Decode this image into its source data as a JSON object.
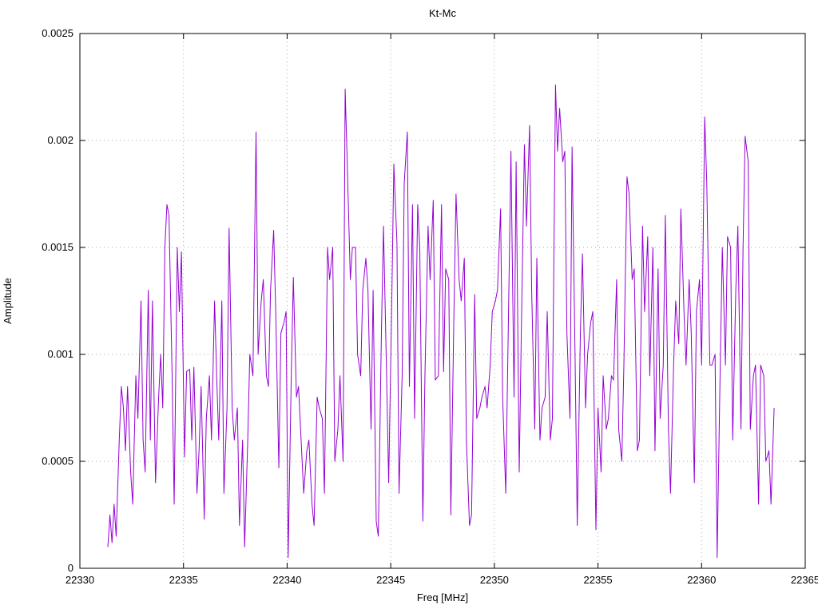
{
  "chart_data": {
    "type": "line",
    "title": "Kt-Mc",
    "xlabel": "Freq [MHz]",
    "ylabel": "Amplitude",
    "xlim": [
      22330,
      22365
    ],
    "ylim": [
      0,
      0.0025
    ],
    "xticks": [
      22330,
      22335,
      22340,
      22345,
      22350,
      22355,
      22360,
      22365
    ],
    "xtick_labels": [
      "22330",
      "22335",
      "22340",
      "22345",
      "22350",
      "22355",
      "22360",
      "22365"
    ],
    "yticks": [
      0,
      0.0005,
      0.001,
      0.0015,
      0.002,
      0.0025
    ],
    "ytick_labels": [
      "0",
      "0.0005",
      "0.001",
      "0.0015",
      "0.002",
      "0.0025"
    ],
    "grid": true,
    "legend": "none",
    "line_color": "#9400d3",
    "grid_color": "#a8a8a8",
    "border_color": "#000000",
    "background": "#ffffff",
    "series": [
      {
        "name": "Kt-Mc",
        "points": [
          [
            22331.35,
            0.0001
          ],
          [
            22331.45,
            0.00025
          ],
          [
            22331.55,
            0.00012
          ],
          [
            22331.65,
            0.0003
          ],
          [
            22331.75,
            0.00015
          ],
          [
            22331.9,
            0.0006
          ],
          [
            22332.0,
            0.00085
          ],
          [
            22332.1,
            0.00075
          ],
          [
            22332.2,
            0.00055
          ],
          [
            22332.3,
            0.00085
          ],
          [
            22332.45,
            0.00045
          ],
          [
            22332.55,
            0.0003
          ],
          [
            22332.7,
            0.0009
          ],
          [
            22332.8,
            0.0007
          ],
          [
            22332.95,
            0.00125
          ],
          [
            22333.05,
            0.0006
          ],
          [
            22333.15,
            0.00045
          ],
          [
            22333.3,
            0.0013
          ],
          [
            22333.4,
            0.0006
          ],
          [
            22333.5,
            0.00125
          ],
          [
            22333.65,
            0.0004
          ],
          [
            22333.8,
            0.0008
          ],
          [
            22333.9,
            0.001
          ],
          [
            22334.0,
            0.00075
          ],
          [
            22334.1,
            0.0015
          ],
          [
            22334.2,
            0.0017
          ],
          [
            22334.3,
            0.00165
          ],
          [
            22334.45,
            0.0009
          ],
          [
            22334.55,
            0.0003
          ],
          [
            22334.7,
            0.0015
          ],
          [
            22334.8,
            0.0012
          ],
          [
            22334.9,
            0.00148
          ],
          [
            22335.05,
            0.00052
          ],
          [
            22335.15,
            0.00092
          ],
          [
            22335.3,
            0.00093
          ],
          [
            22335.4,
            0.0006
          ],
          [
            22335.5,
            0.00094
          ],
          [
            22335.65,
            0.00035
          ],
          [
            22335.75,
            0.00055
          ],
          [
            22335.85,
            0.00085
          ],
          [
            22336.0,
            0.00023
          ],
          [
            22336.1,
            0.0007
          ],
          [
            22336.25,
            0.0009
          ],
          [
            22336.35,
            0.0006
          ],
          [
            22336.5,
            0.00125
          ],
          [
            22336.6,
            0.0009
          ],
          [
            22336.7,
            0.0006
          ],
          [
            22336.85,
            0.00125
          ],
          [
            22336.95,
            0.00035
          ],
          [
            22337.1,
            0.00075
          ],
          [
            22337.2,
            0.00159
          ],
          [
            22337.35,
            0.00075
          ],
          [
            22337.45,
            0.0006
          ],
          [
            22337.6,
            0.00075
          ],
          [
            22337.7,
            0.0002
          ],
          [
            22337.85,
            0.0006
          ],
          [
            22337.95,
            0.0001
          ],
          [
            22338.1,
            0.0006
          ],
          [
            22338.2,
            0.001
          ],
          [
            22338.35,
            0.0009
          ],
          [
            22338.5,
            0.00204
          ],
          [
            22338.6,
            0.001
          ],
          [
            22338.75,
            0.00125
          ],
          [
            22338.85,
            0.00135
          ],
          [
            22339.0,
            0.0009
          ],
          [
            22339.1,
            0.00085
          ],
          [
            22339.2,
            0.0013
          ],
          [
            22339.35,
            0.00158
          ],
          [
            22339.45,
            0.0012
          ],
          [
            22339.6,
            0.00047
          ],
          [
            22339.7,
            0.0011
          ],
          [
            22339.85,
            0.00115
          ],
          [
            22339.95,
            0.0012
          ],
          [
            22340.05,
            5e-05
          ],
          [
            22340.2,
            0.0009
          ],
          [
            22340.3,
            0.00136
          ],
          [
            22340.45,
            0.0008
          ],
          [
            22340.55,
            0.00085
          ],
          [
            22340.7,
            0.00055
          ],
          [
            22340.8,
            0.00035
          ],
          [
            22340.95,
            0.00055
          ],
          [
            22341.05,
            0.0006
          ],
          [
            22341.2,
            0.0003
          ],
          [
            22341.3,
            0.0002
          ],
          [
            22341.45,
            0.0008
          ],
          [
            22341.55,
            0.00075
          ],
          [
            22341.7,
            0.0007
          ],
          [
            22341.8,
            0.00035
          ],
          [
            22341.95,
            0.0015
          ],
          [
            22342.05,
            0.00135
          ],
          [
            22342.2,
            0.0015
          ],
          [
            22342.3,
            0.0005
          ],
          [
            22342.45,
            0.00065
          ],
          [
            22342.55,
            0.0009
          ],
          [
            22342.7,
            0.0005
          ],
          [
            22342.8,
            0.00224
          ],
          [
            22342.9,
            0.0019
          ],
          [
            22343.05,
            0.00135
          ],
          [
            22343.15,
            0.0015
          ],
          [
            22343.3,
            0.0015
          ],
          [
            22343.4,
            0.001
          ],
          [
            22343.55,
            0.0009
          ],
          [
            22343.65,
            0.0013
          ],
          [
            22343.8,
            0.00145
          ],
          [
            22343.9,
            0.0013
          ],
          [
            22344.05,
            0.00065
          ],
          [
            22344.15,
            0.0013
          ],
          [
            22344.3,
            0.00022
          ],
          [
            22344.4,
            0.00015
          ],
          [
            22344.55,
            0.0011
          ],
          [
            22344.65,
            0.0016
          ],
          [
            22344.8,
            0.0009
          ],
          [
            22344.9,
            0.0004
          ],
          [
            22345.05,
            0.00125
          ],
          [
            22345.15,
            0.00189
          ],
          [
            22345.3,
            0.00152
          ],
          [
            22345.4,
            0.00035
          ],
          [
            22345.55,
            0.0009
          ],
          [
            22345.65,
            0.0018
          ],
          [
            22345.8,
            0.00204
          ],
          [
            22345.9,
            0.00085
          ],
          [
            22346.05,
            0.0017
          ],
          [
            22346.15,
            0.0007
          ],
          [
            22346.3,
            0.0017
          ],
          [
            22346.4,
            0.0015
          ],
          [
            22346.55,
            0.00022
          ],
          [
            22346.65,
            0.0009
          ],
          [
            22346.8,
            0.0016
          ],
          [
            22346.9,
            0.00135
          ],
          [
            22347.05,
            0.00172
          ],
          [
            22347.15,
            0.00088
          ],
          [
            22347.3,
            0.0009
          ],
          [
            22347.45,
            0.0017
          ],
          [
            22347.55,
            0.00092
          ],
          [
            22347.65,
            0.0014
          ],
          [
            22347.8,
            0.00135
          ],
          [
            22347.9,
            0.00025
          ],
          [
            22348.05,
            0.0012
          ],
          [
            22348.15,
            0.00175
          ],
          [
            22348.3,
            0.00135
          ],
          [
            22348.4,
            0.00125
          ],
          [
            22348.55,
            0.00145
          ],
          [
            22348.65,
            0.0006
          ],
          [
            22348.8,
            0.0002
          ],
          [
            22348.9,
            0.00025
          ],
          [
            22349.05,
            0.00128
          ],
          [
            22349.15,
            0.0007
          ],
          [
            22349.3,
            0.00075
          ],
          [
            22349.4,
            0.0008
          ],
          [
            22349.55,
            0.00085
          ],
          [
            22349.65,
            0.00075
          ],
          [
            22349.8,
            0.00095
          ],
          [
            22349.9,
            0.0012
          ],
          [
            22350.05,
            0.00125
          ],
          [
            22350.15,
            0.0013
          ],
          [
            22350.3,
            0.00168
          ],
          [
            22350.4,
            0.0008
          ],
          [
            22350.55,
            0.00035
          ],
          [
            22350.7,
            0.0013
          ],
          [
            22350.8,
            0.00195
          ],
          [
            22350.95,
            0.0008
          ],
          [
            22351.05,
            0.0019
          ],
          [
            22351.2,
            0.00045
          ],
          [
            22351.3,
            0.0011
          ],
          [
            22351.45,
            0.00198
          ],
          [
            22351.55,
            0.0016
          ],
          [
            22351.7,
            0.00207
          ],
          [
            22351.8,
            0.0013
          ],
          [
            22351.95,
            0.00065
          ],
          [
            22352.05,
            0.00145
          ],
          [
            22352.2,
            0.0006
          ],
          [
            22352.3,
            0.00075
          ],
          [
            22352.45,
            0.0008
          ],
          [
            22352.55,
            0.0012
          ],
          [
            22352.7,
            0.0006
          ],
          [
            22352.8,
            0.0007
          ],
          [
            22352.95,
            0.00226
          ],
          [
            22353.05,
            0.00195
          ],
          [
            22353.15,
            0.00215
          ],
          [
            22353.3,
            0.0019
          ],
          [
            22353.4,
            0.00195
          ],
          [
            22353.5,
            0.0011
          ],
          [
            22353.65,
            0.0007
          ],
          [
            22353.75,
            0.00197
          ],
          [
            22353.9,
            0.00095
          ],
          [
            22354.0,
            0.0002
          ],
          [
            22354.15,
            0.0011
          ],
          [
            22354.25,
            0.00147
          ],
          [
            22354.4,
            0.00075
          ],
          [
            22354.5,
            0.001
          ],
          [
            22354.65,
            0.00115
          ],
          [
            22354.75,
            0.0012
          ],
          [
            22354.9,
            0.00018
          ],
          [
            22355.0,
            0.00075
          ],
          [
            22355.15,
            0.00045
          ],
          [
            22355.25,
            0.0009
          ],
          [
            22355.4,
            0.00065
          ],
          [
            22355.5,
            0.0007
          ],
          [
            22355.65,
            0.0009
          ],
          [
            22355.75,
            0.00088
          ],
          [
            22355.9,
            0.00135
          ],
          [
            22356.0,
            0.00065
          ],
          [
            22356.15,
            0.0005
          ],
          [
            22356.25,
            0.00095
          ],
          [
            22356.4,
            0.00183
          ],
          [
            22356.5,
            0.00175
          ],
          [
            22356.65,
            0.00135
          ],
          [
            22356.75,
            0.0014
          ],
          [
            22356.9,
            0.00055
          ],
          [
            22357.0,
            0.0006
          ],
          [
            22357.15,
            0.0016
          ],
          [
            22357.25,
            0.0012
          ],
          [
            22357.4,
            0.00155
          ],
          [
            22357.5,
            0.0009
          ],
          [
            22357.65,
            0.0015
          ],
          [
            22357.75,
            0.00055
          ],
          [
            22357.9,
            0.0014
          ],
          [
            22358.0,
            0.0007
          ],
          [
            22358.15,
            0.00095
          ],
          [
            22358.25,
            0.00165
          ],
          [
            22358.4,
            0.00065
          ],
          [
            22358.5,
            0.00035
          ],
          [
            22358.65,
            0.00095
          ],
          [
            22358.75,
            0.00125
          ],
          [
            22358.9,
            0.00105
          ],
          [
            22359.0,
            0.00168
          ],
          [
            22359.15,
            0.0012
          ],
          [
            22359.25,
            0.00095
          ],
          [
            22359.4,
            0.00135
          ],
          [
            22359.5,
            0.0011
          ],
          [
            22359.65,
            0.0004
          ],
          [
            22359.75,
            0.0012
          ],
          [
            22359.9,
            0.00135
          ],
          [
            22360.0,
            0.00095
          ],
          [
            22360.15,
            0.00211
          ],
          [
            22360.25,
            0.0018
          ],
          [
            22360.4,
            0.00095
          ],
          [
            22360.5,
            0.00095
          ],
          [
            22360.65,
            0.001
          ],
          [
            22360.75,
            5e-05
          ],
          [
            22360.9,
            0.00095
          ],
          [
            22361.0,
            0.0015
          ],
          [
            22361.15,
            0.00095
          ],
          [
            22361.25,
            0.00155
          ],
          [
            22361.4,
            0.0015
          ],
          [
            22361.5,
            0.0006
          ],
          [
            22361.65,
            0.0013
          ],
          [
            22361.75,
            0.0016
          ],
          [
            22361.9,
            0.00065
          ],
          [
            22362.0,
            0.0015
          ],
          [
            22362.1,
            0.00202
          ],
          [
            22362.25,
            0.0019
          ],
          [
            22362.35,
            0.00065
          ],
          [
            22362.5,
            0.0009
          ],
          [
            22362.6,
            0.00095
          ],
          [
            22362.75,
            0.0003
          ],
          [
            22362.85,
            0.00095
          ],
          [
            22363.0,
            0.0009
          ],
          [
            22363.1,
            0.0005
          ],
          [
            22363.25,
            0.00055
          ],
          [
            22363.35,
            0.0003
          ],
          [
            22363.5,
            0.00075
          ]
        ]
      }
    ]
  }
}
